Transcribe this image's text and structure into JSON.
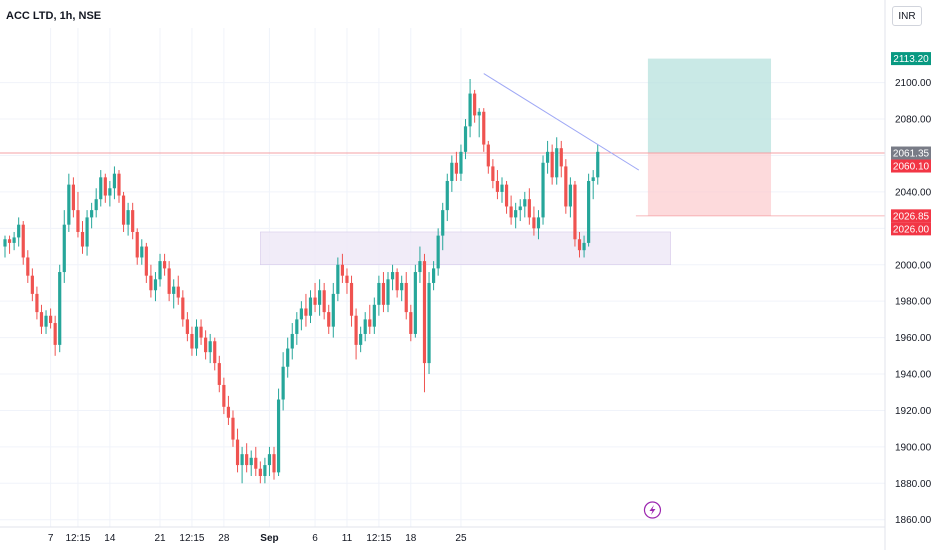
{
  "chart_data": {
    "type": "candlestick",
    "title": "ACC LTD, 1h, NSE",
    "currency": "INR",
    "ylim": [
      1856,
      2130
    ],
    "y_ticks": [
      1860,
      1880,
      1900,
      1920,
      1940,
      1960,
      1980,
      2000,
      2020,
      2040,
      2060,
      2080,
      2100
    ],
    "y_tick_labels": [
      "1860.00",
      "1880.00",
      "1900.00",
      "1920.00",
      "1940.00",
      "1960.00",
      "1980.00",
      "2000.00",
      "2020.00",
      "2040.00",
      "2060.00",
      "2080.00",
      "2100.00"
    ],
    "x_range": [
      0,
      193
    ],
    "x_ticks": [
      {
        "label": "7",
        "x": 10
      },
      {
        "label": "12:15",
        "x": 16
      },
      {
        "label": "14",
        "x": 23
      },
      {
        "label": "21",
        "x": 34
      },
      {
        "label": "12:15",
        "x": 41
      },
      {
        "label": "28",
        "x": 48
      },
      {
        "label": "Sep",
        "x": 58
      },
      {
        "label": "6",
        "x": 68
      },
      {
        "label": "11",
        "x": 75
      },
      {
        "label": "12:15",
        "x": 82
      },
      {
        "label": "18",
        "x": 89
      },
      {
        "label": "25",
        "x": 100
      }
    ],
    "colors": {
      "up": "#26a69a",
      "down": "#ef5350",
      "grid": "#f0f3fa",
      "trendline": "#9fa8f5",
      "zone": "#ede7f6",
      "target": "#b2dfdb",
      "stop": "#fccbcd",
      "last": "#787b86"
    },
    "candles": [
      [
        2010,
        2016,
        2004,
        2014
      ],
      [
        2014,
        2016,
        2006,
        2012
      ],
      [
        2012,
        2018,
        2008,
        2015
      ],
      [
        2015,
        2026,
        2010,
        2022
      ],
      [
        2022,
        2024,
        2000,
        2004
      ],
      [
        2004,
        2008,
        1990,
        1994
      ],
      [
        1994,
        1998,
        1980,
        1984
      ],
      [
        1984,
        1988,
        1970,
        1974
      ],
      [
        1974,
        1978,
        1962,
        1966
      ],
      [
        1966,
        1975,
        1962,
        1972
      ],
      [
        1972,
        1976,
        1965,
        1968
      ],
      [
        1968,
        1972,
        1950,
        1956
      ],
      [
        1956,
        2000,
        1952,
        1996
      ],
      [
        1996,
        2030,
        1990,
        2022
      ],
      [
        2022,
        2050,
        2018,
        2044
      ],
      [
        2044,
        2048,
        2026,
        2030
      ],
      [
        2030,
        2040,
        2015,
        2018
      ],
      [
        2018,
        2024,
        2006,
        2010
      ],
      [
        2010,
        2030,
        2005,
        2026
      ],
      [
        2026,
        2034,
        2020,
        2030
      ],
      [
        2030,
        2042,
        2026,
        2036
      ],
      [
        2036,
        2052,
        2032,
        2048
      ],
      [
        2048,
        2050,
        2034,
        2038
      ],
      [
        2038,
        2046,
        2032,
        2042
      ],
      [
        2042,
        2054,
        2036,
        2050
      ],
      [
        2050,
        2052,
        2034,
        2038
      ],
      [
        2038,
        2040,
        2018,
        2022
      ],
      [
        2022,
        2034,
        2016,
        2030
      ],
      [
        2030,
        2034,
        2014,
        2018
      ],
      [
        2018,
        2020,
        2000,
        2004
      ],
      [
        2004,
        2014,
        2000,
        2010
      ],
      [
        2010,
        2012,
        1990,
        1994
      ],
      [
        1994,
        2000,
        1982,
        1986
      ],
      [
        1986,
        1996,
        1980,
        1992
      ],
      [
        1992,
        2006,
        1988,
        2002
      ],
      [
        2002,
        2006,
        1994,
        1998
      ],
      [
        1998,
        2002,
        1980,
        1984
      ],
      [
        1984,
        1992,
        1976,
        1988
      ],
      [
        1988,
        1994,
        1978,
        1982
      ],
      [
        1982,
        1986,
        1966,
        1970
      ],
      [
        1970,
        1974,
        1958,
        1962
      ],
      [
        1962,
        1966,
        1950,
        1954
      ],
      [
        1954,
        1970,
        1950,
        1966
      ],
      [
        1966,
        1970,
        1956,
        1960
      ],
      [
        1960,
        1964,
        1948,
        1952
      ],
      [
        1952,
        1962,
        1946,
        1958
      ],
      [
        1958,
        1960,
        1942,
        1946
      ],
      [
        1946,
        1950,
        1930,
        1934
      ],
      [
        1934,
        1938,
        1918,
        1922
      ],
      [
        1922,
        1928,
        1912,
        1916
      ],
      [
        1916,
        1920,
        1900,
        1904
      ],
      [
        1904,
        1910,
        1886,
        1890
      ],
      [
        1890,
        1900,
        1880,
        1896
      ],
      [
        1896,
        1902,
        1886,
        1890
      ],
      [
        1890,
        1898,
        1884,
        1894
      ],
      [
        1894,
        1900,
        1884,
        1888
      ],
      [
        1888,
        1892,
        1880,
        1884
      ],
      [
        1884,
        1894,
        1880,
        1890
      ],
      [
        1890,
        1900,
        1884,
        1896
      ],
      [
        1896,
        1900,
        1882,
        1886
      ],
      [
        1886,
        1932,
        1884,
        1926
      ],
      [
        1926,
        1952,
        1920,
        1944
      ],
      [
        1944,
        1960,
        1938,
        1954
      ],
      [
        1954,
        1968,
        1948,
        1962
      ],
      [
        1962,
        1974,
        1956,
        1970
      ],
      [
        1970,
        1980,
        1964,
        1976
      ],
      [
        1976,
        1984,
        1966,
        1972
      ],
      [
        1972,
        1986,
        1968,
        1982
      ],
      [
        1982,
        1990,
        1974,
        1978
      ],
      [
        1978,
        1992,
        1972,
        1986
      ],
      [
        1986,
        1990,
        1970,
        1974
      ],
      [
        1974,
        1978,
        1962,
        1966
      ],
      [
        1966,
        1990,
        1960,
        1984
      ],
      [
        1984,
        2004,
        1980,
        2000
      ],
      [
        2000,
        2006,
        1990,
        1994
      ],
      [
        1994,
        1998,
        1984,
        1990
      ],
      [
        1990,
        1994,
        1966,
        1972
      ],
      [
        1972,
        1976,
        1948,
        1956
      ],
      [
        1956,
        1966,
        1952,
        1962
      ],
      [
        1962,
        1974,
        1958,
        1970
      ],
      [
        1970,
        1978,
        1962,
        1966
      ],
      [
        1966,
        1982,
        1962,
        1978
      ],
      [
        1978,
        1994,
        1972,
        1990
      ],
      [
        1990,
        1996,
        1974,
        1978
      ],
      [
        1978,
        1996,
        1974,
        1992
      ],
      [
        1992,
        2000,
        1986,
        1996
      ],
      [
        1996,
        1998,
        1982,
        1986
      ],
      [
        1986,
        1994,
        1980,
        1990
      ],
      [
        1990,
        1996,
        1970,
        1974
      ],
      [
        1974,
        1978,
        1958,
        1962
      ],
      [
        1962,
        2000,
        1960,
        1996
      ],
      [
        1996,
        2010,
        1990,
        2002
      ],
      [
        2002,
        2006,
        1930,
        1946
      ],
      [
        1946,
        1996,
        1940,
        1990
      ],
      [
        1990,
        2002,
        1986,
        1998
      ],
      [
        1998,
        2020,
        1994,
        2016
      ],
      [
        2016,
        2034,
        2008,
        2030
      ],
      [
        2030,
        2050,
        2024,
        2046
      ],
      [
        2046,
        2060,
        2040,
        2056
      ],
      [
        2056,
        2062,
        2046,
        2050
      ],
      [
        2050,
        2066,
        2046,
        2062
      ],
      [
        2062,
        2080,
        2058,
        2076
      ],
      [
        2076,
        2102,
        2070,
        2094
      ],
      [
        2094,
        2096,
        2078,
        2082
      ],
      [
        2082,
        2086,
        2070,
        2084
      ],
      [
        2084,
        2086,
        2062,
        2066
      ],
      [
        2066,
        2068,
        2050,
        2054
      ],
      [
        2054,
        2058,
        2042,
        2046
      ],
      [
        2046,
        2052,
        2036,
        2040
      ],
      [
        2040,
        2048,
        2034,
        2044
      ],
      [
        2044,
        2046,
        2028,
        2032
      ],
      [
        2032,
        2038,
        2022,
        2026
      ],
      [
        2026,
        2034,
        2020,
        2030
      ],
      [
        2030,
        2036,
        2024,
        2032
      ],
      [
        2032,
        2040,
        2026,
        2036
      ],
      [
        2036,
        2042,
        2022,
        2026
      ],
      [
        2026,
        2032,
        2016,
        2020
      ],
      [
        2020,
        2030,
        2014,
        2026
      ],
      [
        2026,
        2060,
        2022,
        2056
      ],
      [
        2056,
        2068,
        2050,
        2062
      ],
      [
        2062,
        2066,
        2044,
        2048
      ],
      [
        2048,
        2070,
        2044,
        2064
      ],
      [
        2064,
        2068,
        2048,
        2054
      ],
      [
        2054,
        2058,
        2028,
        2032
      ],
      [
        2032,
        2048,
        2026,
        2044
      ],
      [
        2044,
        2046,
        2010,
        2014
      ],
      [
        2014,
        2018,
        2004,
        2008
      ],
      [
        2008,
        2016,
        2004,
        2012
      ],
      [
        2012,
        2050,
        2010,
        2046
      ],
      [
        2046,
        2052,
        2036,
        2048
      ],
      [
        2048,
        2066,
        2044,
        2062
      ]
    ],
    "trendline": [
      {
        "x": 105,
        "y": 2105
      },
      {
        "x": 139,
        "y": 2052
      }
    ],
    "support_zone": {
      "x0": 56,
      "x1": 146,
      "y0": 2000,
      "y1": 2018
    },
    "long_position": {
      "x0": 141,
      "x1": 168,
      "entry": 2061.35,
      "target": 2113.2,
      "stop": 2026.85
    },
    "entry_line": 2061.35,
    "price_labels": [
      {
        "value": 2113.2,
        "text": "2113.20",
        "kind": "target"
      },
      {
        "value": 2061.35,
        "text": "2061.35",
        "kind": "last"
      },
      {
        "value": 2060.1,
        "text": "2060.10",
        "kind": "stop"
      },
      {
        "value": 2026.85,
        "text": "2026.85",
        "kind": "stop"
      },
      {
        "value": 2026.0,
        "text": "2026.00",
        "kind": "stop"
      }
    ],
    "event_marker": {
      "x": 142,
      "icon": "lightning-icon"
    }
  }
}
